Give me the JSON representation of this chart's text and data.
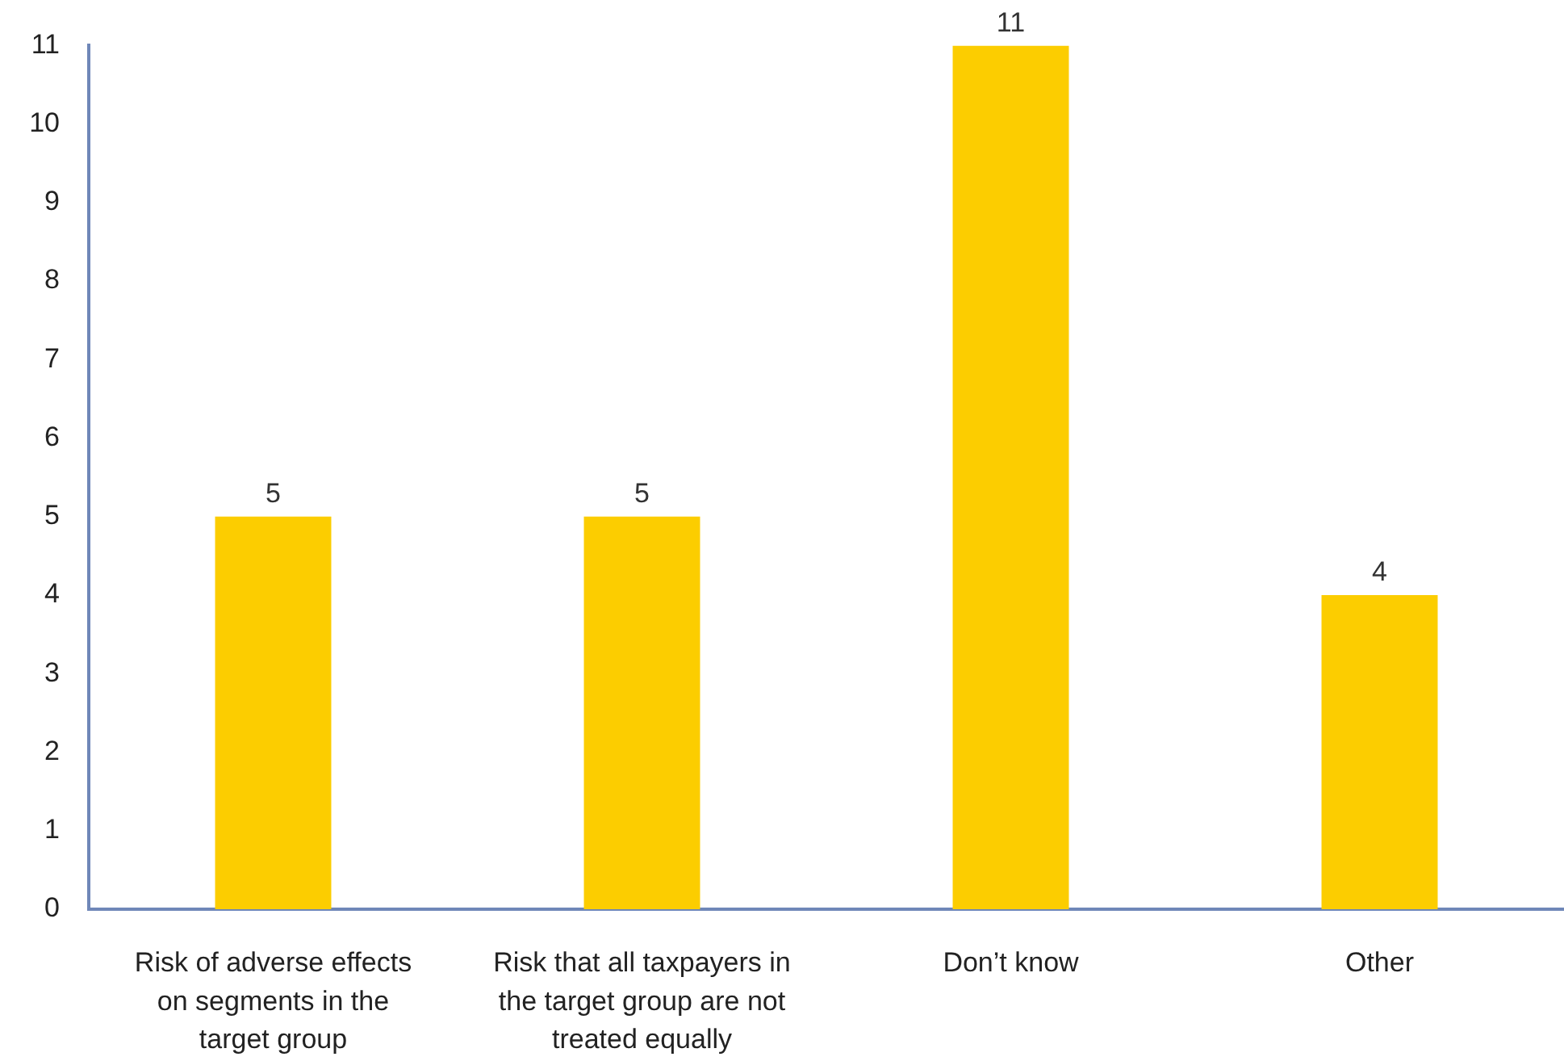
{
  "chart_data": {
    "type": "bar",
    "categories": [
      "Risk of adverse effects on segments in the target group",
      "Risk that all taxpayers in the target group are not treated equally",
      "Don’t know",
      "Other"
    ],
    "values": [
      5,
      5,
      11,
      4
    ],
    "color": "#fccd00",
    "ylim": [
      0,
      11
    ],
    "yticks": [
      0,
      1,
      2,
      3,
      4,
      5,
      6,
      7,
      8,
      9,
      10,
      11
    ],
    "grid": false,
    "legend": false,
    "data_labels": true
  }
}
